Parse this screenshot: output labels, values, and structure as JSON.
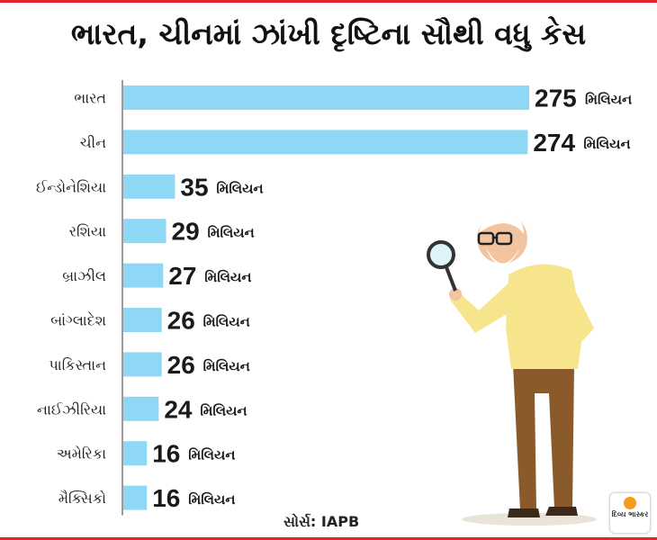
{
  "title": "ભારત, ચીનમાં ઝાંખી દૃષ્ટિના સૌથી વધુ કેસ",
  "source": "સોર્સ: IAPB",
  "logo_text": "દિવ્ય ભાસ્કર",
  "colors": {
    "bar": "#8fd8f5",
    "accent": "#e2232a"
  },
  "chart_data": {
    "type": "bar",
    "orientation": "horizontal",
    "title": "ભારત, ચીનમાં ઝાંખી દૃષ્ટિના સૌથી વધુ કેસ",
    "categories": [
      "ભારત",
      "ચીન",
      "ઈન્ડોનેશિયા",
      "રશિયા",
      "બ્રાઝીલ",
      "બાંગ્લાદેશ",
      "પાકિસ્તાન",
      "નાઈઝીરિયા",
      "અમેરિકા",
      "મૈક્સિકો"
    ],
    "values": [
      275,
      274,
      35,
      29,
      27,
      26,
      26,
      24,
      16,
      16
    ],
    "unit": "મિલિયન",
    "xlabel": "",
    "ylabel": "",
    "grid": false
  }
}
